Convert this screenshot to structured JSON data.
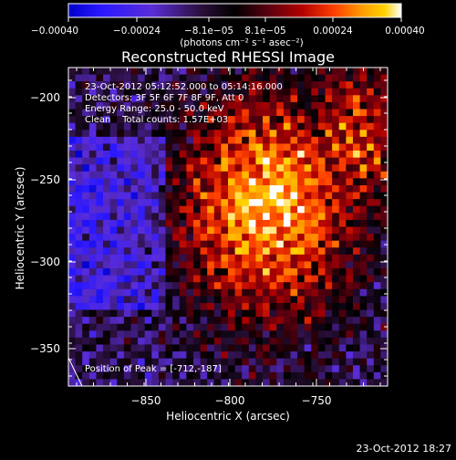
{
  "chart_data": {
    "type": "heatmap",
    "title": "Reconstructed RHESSI Image",
    "xlabel": "Heliocentric X (arcsec)",
    "ylabel": "Heliocentric Y (arcsec)",
    "xlim": [
      -895,
      -785
    ],
    "ylim": [
      -372,
      -205
    ],
    "xticks": [
      -850,
      -800,
      -750
    ],
    "yticks": [
      -200,
      -250,
      -300,
      -350
    ],
    "xtick_labels": [
      "−850",
      "−800",
      "−750"
    ],
    "ytick_labels": [
      "−200",
      "−250",
      "−300",
      "−350"
    ],
    "colorbar": {
      "min": -0.0004,
      "max": 0.0004,
      "tick_labels": [
        "−0.00040",
        "−0.00024",
        "−8.1e−05",
        "8.1e−05",
        "0.00024",
        "0.00040"
      ],
      "unit_label": "(photons cm⁻² s⁻¹ asec⁻²)",
      "colors": [
        "#0000cc",
        "#2a18ff",
        "#5a2dd8",
        "#2a0f3a",
        "#000000",
        "#5a0010",
        "#b00000",
        "#ff4000",
        "#ff9a00",
        "#ffd200",
        "#ffffff"
      ]
    },
    "peak": [
      -712,
      -187
    ],
    "notes": [
      "23-Oct-2012 05:12:52.000 to 05:14:16.000",
      "Detectors: 3F 5F 6F 7F 8F 9F, Att 0",
      "Energy Range: 25.0 - 50.0 keV",
      "Clean    Total counts: 1.57E+03"
    ],
    "peak_label": "Position of Peak = [-712,-187]",
    "timestamp": "23-Oct-2012 18:27"
  }
}
